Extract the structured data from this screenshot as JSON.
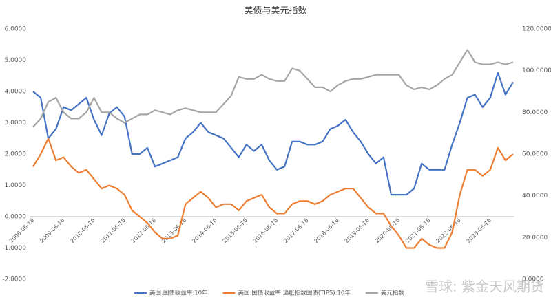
{
  "chart_data": {
    "type": "line",
    "title": "美债与美元指数",
    "categories": [
      "2008-06-16",
      null,
      null,
      null,
      "2009-06-16",
      null,
      null,
      null,
      "2010-06-16",
      null,
      null,
      null,
      "2011-06-16",
      null,
      null,
      null,
      "2012-06-16",
      null,
      null,
      null,
      "2013-06-16",
      null,
      null,
      null,
      "2014-06-16",
      null,
      null,
      null,
      "2015-06-16",
      null,
      null,
      null,
      "2016-06-16",
      null,
      null,
      null,
      "2017-06-16",
      null,
      null,
      null,
      "2018-06-16",
      null,
      null,
      null,
      "2019-06-16",
      null,
      null,
      null,
      "2020-06-16",
      null,
      null,
      null,
      "2021-06-16",
      null,
      null,
      null,
      "2022-06-16",
      null,
      null,
      null,
      "2023-06-16",
      null,
      null,
      null
    ],
    "series": [
      {
        "name": "美国:国债收益率:10年",
        "color": "#4472c4",
        "values": [
          4.0,
          3.8,
          2.5,
          2.8,
          3.5,
          3.4,
          3.6,
          3.8,
          3.1,
          2.6,
          3.3,
          3.5,
          3.2,
          2.0,
          2.0,
          2.2,
          1.6,
          1.7,
          1.8,
          1.9,
          2.5,
          2.7,
          3.0,
          2.7,
          2.6,
          2.5,
          2.2,
          1.9,
          2.3,
          2.1,
          2.3,
          1.8,
          1.5,
          1.6,
          2.4,
          2.4,
          2.3,
          2.3,
          2.4,
          2.8,
          2.9,
          3.1,
          2.7,
          2.4,
          2.0,
          1.7,
          1.9,
          0.7,
          0.7,
          0.7,
          0.9,
          1.7,
          1.5,
          1.5,
          1.5,
          2.3,
          3.0,
          3.8,
          3.9,
          3.5,
          3.8,
          4.6,
          3.9,
          4.3
        ]
      },
      {
        "name": "美国:国债收益率:通胀指数国债(TIPS):10年",
        "color": "#ed7d31",
        "values": [
          1.6,
          2.0,
          2.5,
          1.8,
          1.9,
          1.6,
          1.4,
          1.5,
          1.2,
          0.9,
          1.0,
          0.9,
          0.7,
          0.2,
          0.0,
          -0.2,
          -0.5,
          -0.7,
          -0.7,
          -0.6,
          0.4,
          0.6,
          0.8,
          0.6,
          0.3,
          0.4,
          0.4,
          0.2,
          0.5,
          0.6,
          0.7,
          0.3,
          0.1,
          0.1,
          0.4,
          0.5,
          0.5,
          0.4,
          0.5,
          0.7,
          0.8,
          0.9,
          0.9,
          0.6,
          0.3,
          0.1,
          0.1,
          -0.3,
          -0.6,
          -1.0,
          -1.0,
          -0.7,
          -0.9,
          -1.0,
          -1.0,
          -0.5,
          0.7,
          1.5,
          1.5,
          1.3,
          1.5,
          2.2,
          1.8,
          2.0
        ]
      },
      {
        "name": "美元指数",
        "color": "#a5a5a5",
        "axis": "y2",
        "values": [
          73,
          77,
          85,
          87,
          80,
          77,
          77,
          80,
          87,
          80,
          80,
          77,
          75,
          77,
          79,
          79,
          81,
          80,
          79,
          81,
          82,
          81,
          80,
          80,
          80,
          84,
          88,
          97,
          96,
          96,
          98,
          96,
          95,
          95,
          101,
          100,
          96,
          92,
          92,
          90,
          93,
          95,
          96,
          96,
          97,
          98,
          98,
          98,
          98,
          93,
          91,
          92,
          91,
          93,
          96,
          98,
          104,
          110,
          104,
          103,
          103,
          104,
          103,
          104
        ]
      }
    ],
    "ylim": [
      -2,
      6
    ],
    "yticks": [
      {
        "value": -2,
        "label": "-2.0000"
      },
      {
        "value": -1,
        "label": "-1.0000"
      },
      {
        "value": 0,
        "label": "0.0000"
      },
      {
        "value": 1,
        "label": "1.0000"
      },
      {
        "value": 2,
        "label": "2.0000"
      },
      {
        "value": 3,
        "label": "3.0000"
      },
      {
        "value": 4,
        "label": "4.0000"
      },
      {
        "value": 5,
        "label": "5.0000"
      },
      {
        "value": 6,
        "label": "6.0000"
      }
    ],
    "y2lim": [
      0,
      120
    ],
    "y2ticks": [
      {
        "value": 0,
        "label": "0.0000"
      },
      {
        "value": 20,
        "label": "20.0000"
      },
      {
        "value": 40,
        "label": "40.0000"
      },
      {
        "value": 60,
        "label": "60.0000"
      },
      {
        "value": 80,
        "label": "80.0000"
      },
      {
        "value": 100,
        "label": "100.0000"
      },
      {
        "value": 120,
        "label": "120.0000"
      }
    ],
    "watermark": "雪球: 紫金天风期货"
  }
}
